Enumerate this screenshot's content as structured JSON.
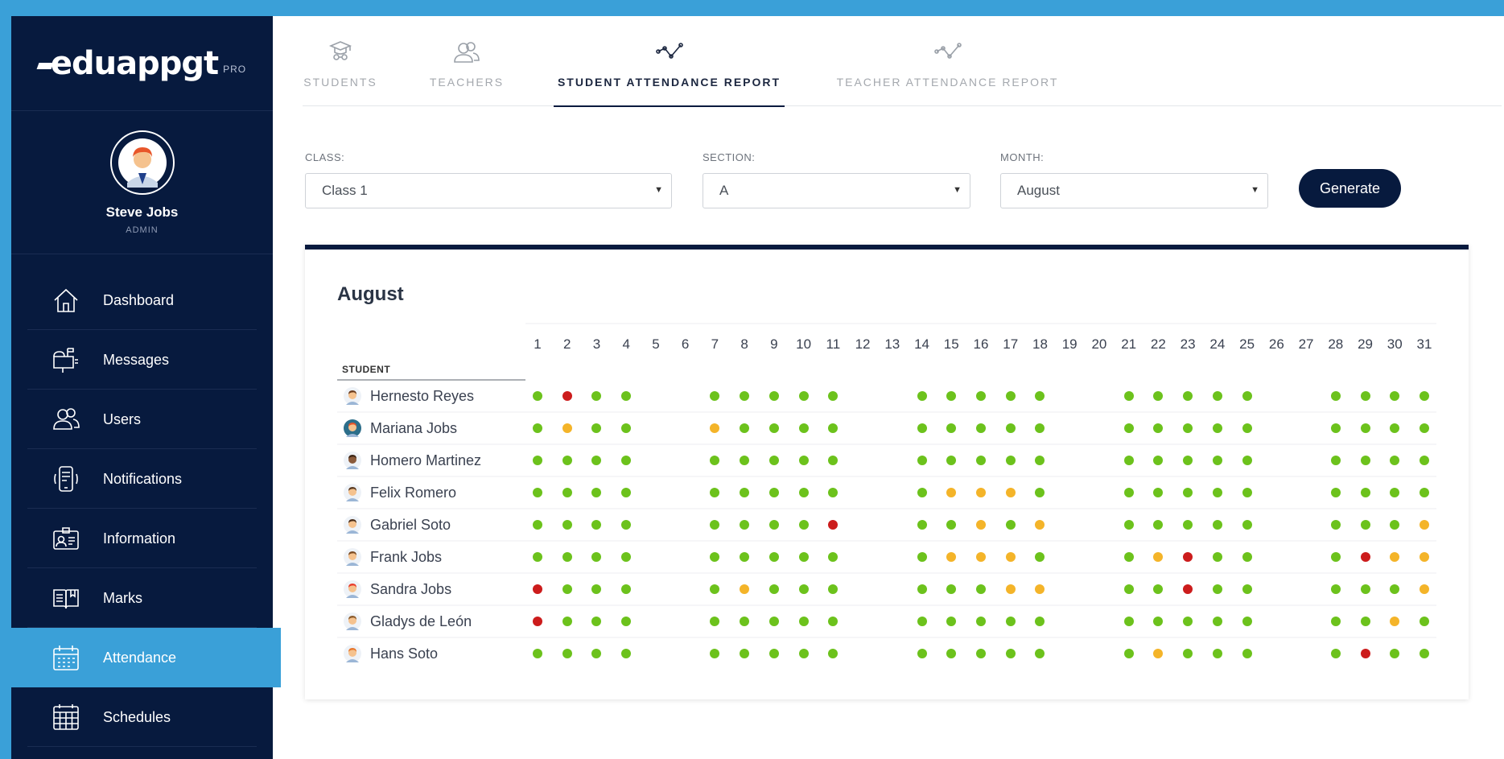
{
  "colors": {
    "sidebar_bg": "#071a3e",
    "accent": "#3aa0d8",
    "present": "#6cc21c",
    "late": "#f4b429",
    "absent": "#cc1c1c"
  },
  "brand": {
    "name": "eduappgt",
    "suffix": "PRO"
  },
  "profile": {
    "name": "Steve Jobs",
    "role": "ADMIN"
  },
  "sidebar": {
    "items": [
      {
        "label": "Dashboard",
        "icon": "home-icon",
        "active": false
      },
      {
        "label": "Messages",
        "icon": "mailbox-icon",
        "active": false
      },
      {
        "label": "Users",
        "icon": "users-icon",
        "active": false
      },
      {
        "label": "Notifications",
        "icon": "phone-icon",
        "active": false
      },
      {
        "label": "Information",
        "icon": "id-card-icon",
        "active": false
      },
      {
        "label": "Marks",
        "icon": "book-icon",
        "active": false
      },
      {
        "label": "Attendance",
        "icon": "calendar-icon",
        "active": true
      },
      {
        "label": "Schedules",
        "icon": "schedule-grid-icon",
        "active": false
      }
    ]
  },
  "tabs": [
    {
      "label": "STUDENTS",
      "icon": "graduate-icon",
      "active": false
    },
    {
      "label": "TEACHERS",
      "icon": "teachers-icon",
      "active": false
    },
    {
      "label": "STUDENT ATTENDANCE REPORT",
      "icon": "line-chart-icon",
      "active": true
    },
    {
      "label": "TEACHER ATTENDANCE REPORT",
      "icon": "line-chart-icon",
      "active": false
    }
  ],
  "filters": {
    "class": {
      "label": "CLASS:",
      "value": "Class 1"
    },
    "section": {
      "label": "SECTION:",
      "value": "A"
    },
    "month": {
      "label": "MONTH:",
      "value": "August"
    },
    "generate_label": "Generate"
  },
  "report": {
    "title": "August",
    "student_header": "STUDENT",
    "days": [
      "1",
      "2",
      "3",
      "4",
      "5",
      "6",
      "7",
      "8",
      "9",
      "10",
      "11",
      "12",
      "13",
      "14",
      "15",
      "16",
      "17",
      "18",
      "19",
      "20",
      "21",
      "22",
      "23",
      "24",
      "25",
      "26",
      "27",
      "28",
      "29",
      "30",
      "31"
    ],
    "legend_codes": {
      "P": "present",
      "L": "late",
      "A": "absent",
      "-": "no record"
    },
    "students": [
      {
        "name": "Hernesto Reyes",
        "avatar": "student-avatar-icon",
        "attendance": "PAPP--PPPPP--PPPPP--PPPPP--PPPP"
      },
      {
        "name": "Mariana Jobs",
        "avatar": "student-avatar-icon",
        "attendance": "PLPP--LPPPP--PPPPP--PPPPP--PPPP"
      },
      {
        "name": "Homero Martinez",
        "avatar": "student-avatar-icon",
        "attendance": "PPPP--PPPPP--PPPPP--PPPPP--PPPP"
      },
      {
        "name": "Felix Romero",
        "avatar": "student-avatar-icon",
        "attendance": "PPPP--PPPPP--PLLLP--PPPPP--PPPP"
      },
      {
        "name": "Gabriel Soto",
        "avatar": "student-avatar-icon",
        "attendance": "PPPP--PPPPA--PPLPL--PPPPP--PPPL"
      },
      {
        "name": "Frank Jobs",
        "avatar": "student-avatar-icon",
        "attendance": "PPPP--PPPPP--PLLLP--PLAPP--PALL"
      },
      {
        "name": "Sandra Jobs",
        "avatar": "student-avatar-icon",
        "attendance": "APPP--PLPPP--PPPLL--PPAPP--PPPL"
      },
      {
        "name": "Gladys de León",
        "avatar": "student-avatar-icon",
        "attendance": "APPP--PPPPP--PPPPP--PPPPP--PPLP"
      },
      {
        "name": "Hans Soto",
        "avatar": "student-avatar-icon",
        "attendance": "PPPP--PPPPP--PPPPP--PLPPP--PAPP"
      }
    ]
  }
}
